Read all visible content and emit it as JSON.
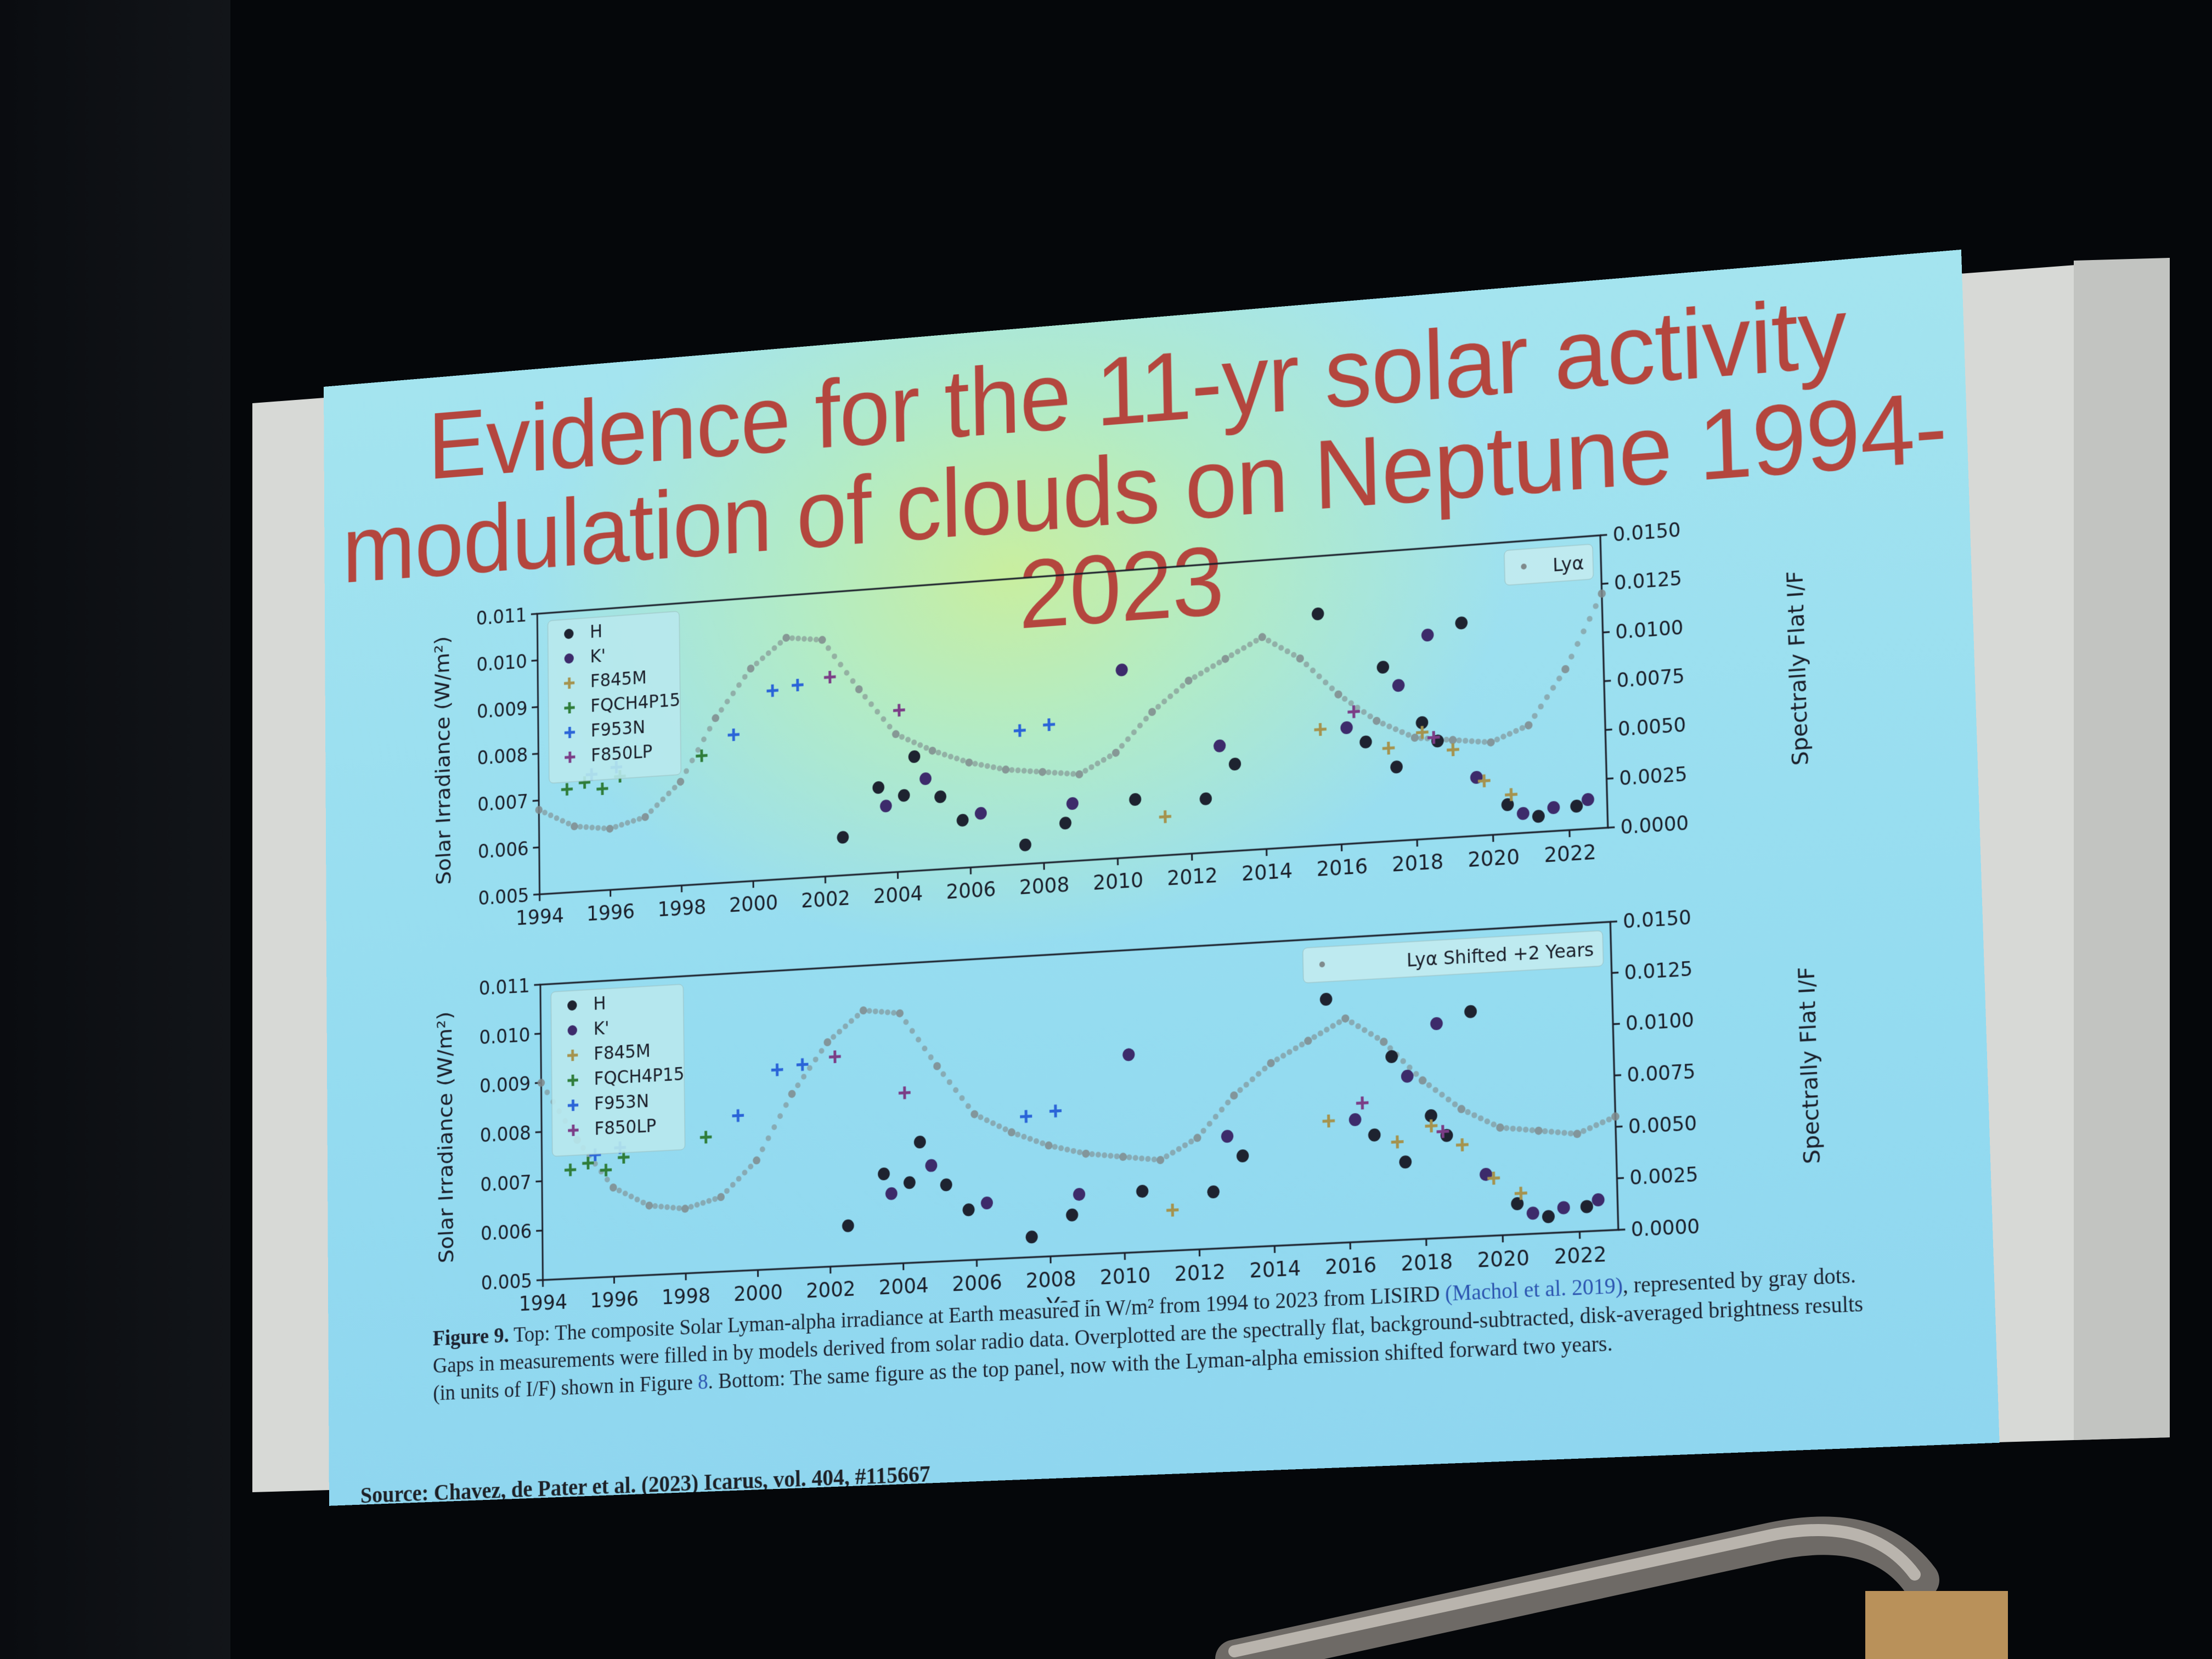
{
  "slide": {
    "title_line1": "Evidence for the 11-yr solar activity",
    "title_line2": "modulation of clouds on Neptune 1994-2023",
    "caption_label": "Figure 9.",
    "caption_part1": "Top: The composite Solar Lyman-alpha irradiance at Earth measured in W/m² from 1994 to 2023 from LISIRD",
    "caption_link": "(Machol et al. 2019)",
    "caption_part2": ", represented by gray dots. Gaps in measurements were filled in by models derived from solar radio data. Overplotted are the spectrally flat, background-subtracted, disk-averaged brightness results (in units of I/F) shown in Figure",
    "caption_fig_ref": "8",
    "caption_part3": ". Bottom: The same figure as the top panel, now with the Lyman-alpha emission shifted forward two years.",
    "source": "Source: Chavez, de Pater et al. (2023) Icarus, vol. 404, #115667"
  },
  "colors": {
    "title": "#b4463e",
    "H": "#1e2330",
    "Kprime": "#3d2b6b",
    "F845M": "#a5934e",
    "FQCH4P15": "#2f7d3a",
    "F953N": "#2a64d8",
    "F850LP": "#7b3d86",
    "lya": "#7f8a8c"
  },
  "chart_data": [
    {
      "type": "scatter",
      "panel": "top",
      "xlabel": "",
      "ylabel_left": "Solar Irradiance (W/m²)",
      "ylabel_right": "Spectrally Flat I/F",
      "xlim": [
        1994,
        2023
      ],
      "ylim_left": [
        0.005,
        0.011
      ],
      "ylim_right": [
        0.0,
        0.015
      ],
      "x_ticks": [
        "1994",
        "1996",
        "1998",
        "2000",
        "2002",
        "2004",
        "2006",
        "2008",
        "2010",
        "2012",
        "2014",
        "2016",
        "2018",
        "2020",
        "2022"
      ],
      "y_ticks_left": [
        "0.005",
        "0.006",
        "0.007",
        "0.008",
        "0.009",
        "0.010",
        "0.011"
      ],
      "y_ticks_right": [
        "0.0000",
        "0.0025",
        "0.0050",
        "0.0075",
        "0.0100",
        "0.0125",
        "0.0150"
      ],
      "legend_left": [
        "H",
        "K'",
        "F845M",
        "FQCH4P15",
        "F953N",
        "F850LP"
      ],
      "legend_left_placement": "top-left",
      "legend_right": "Lyα",
      "legend_right_placement": "top-right",
      "lya_curve": {
        "x": [
          1994,
          1995,
          1996,
          1997,
          1998,
          1999,
          2000,
          2001,
          2002,
          2003,
          2004,
          2005,
          2006,
          2007,
          2008,
          2009,
          2010,
          2011,
          2012,
          2013,
          2014,
          2015,
          2016,
          2017,
          2018,
          2019,
          2020,
          2021,
          2022,
          2023
        ],
        "y": [
          0.0068,
          0.0064,
          0.0063,
          0.0065,
          0.0072,
          0.0085,
          0.0095,
          0.0101,
          0.01,
          0.0089,
          0.0079,
          0.0075,
          0.0072,
          0.007,
          0.0069,
          0.0068,
          0.0072,
          0.008,
          0.0086,
          0.009,
          0.0094,
          0.0089,
          0.0081,
          0.0075,
          0.0071,
          0.007,
          0.0069,
          0.0072,
          0.0083,
          0.0098
        ]
      },
      "series": [
        {
          "name": "H",
          "marker": "dot",
          "x": [
            2002.5,
            2003.5,
            2004.2,
            2004.5,
            2005.2,
            2005.8,
            2007.5,
            2008.6,
            2010.5,
            2012.4,
            2013.2,
            2015.5,
            2016.7,
            2017.2,
            2017.5,
            2018.2,
            2018.6,
            2019.3,
            2020.4,
            2021.2,
            2022.2
          ],
          "y": [
            0.002,
            0.0045,
            0.004,
            0.006,
            0.0038,
            0.0025,
            0.001,
            0.002,
            0.003,
            0.0028,
            0.0045,
            0.012,
            0.0052,
            0.009,
            0.0038,
            0.006,
            0.005,
            0.011,
            0.0015,
            0.0008,
            0.0012
          ]
        },
        {
          "name": "K'",
          "marker": "dot",
          "x": [
            2003.7,
            2004.8,
            2006.3,
            2008.8,
            2010.2,
            2012.8,
            2016.2,
            2017.6,
            2018.4,
            2019.6,
            2020.8,
            2021.6,
            2022.5
          ],
          "y": [
            0.0035,
            0.0048,
            0.0028,
            0.003,
            0.0098,
            0.0055,
            0.006,
            0.008,
            0.0105,
            0.003,
            0.001,
            0.0012,
            0.0015
          ]
        },
        {
          "name": "F845M",
          "marker": "plus",
          "x": [
            2011.3,
            2015.5,
            2017.3,
            2018.2,
            2019.0,
            2019.8,
            2020.5
          ],
          "y": [
            0.002,
            0.006,
            0.0048,
            0.0055,
            0.0045,
            0.0028,
            0.002
          ]
        },
        {
          "name": "FQCH4P15",
          "marker": "plus",
          "x": [
            1994.8,
            1995.3,
            1995.8,
            1996.3,
            1998.6
          ],
          "y": [
            0.0055,
            0.0058,
            0.0054,
            0.006,
            0.0068
          ]
        },
        {
          "name": "F953N",
          "marker": "plus",
          "x": [
            1995.5,
            1996.2,
            1999.5,
            2000.6,
            2001.3,
            2007.4,
            2008.2
          ],
          "y": [
            0.0062,
            0.0065,
            0.0078,
            0.01,
            0.0102,
            0.007,
            0.0072
          ]
        },
        {
          "name": "F850LP",
          "marker": "plus",
          "x": [
            2002.2,
            2004.1,
            2016.4,
            2018.5
          ],
          "y": [
            0.0105,
            0.0085,
            0.0068,
            0.0052
          ]
        }
      ]
    },
    {
      "type": "scatter",
      "panel": "bottom",
      "xlabel": "Year",
      "ylabel_left": "Solar Irradiance (W/m²)",
      "ylabel_right": "Spectrally Flat I/F",
      "xlim": [
        1994,
        2023
      ],
      "ylim_left": [
        0.005,
        0.011
      ],
      "ylim_right": [
        0.0,
        0.015
      ],
      "x_ticks": [
        "1994",
        "1996",
        "1998",
        "2000",
        "2002",
        "2004",
        "2006",
        "2008",
        "2010",
        "2012",
        "2014",
        "2016",
        "2018",
        "2020",
        "2022"
      ],
      "y_ticks_left": [
        "0.005",
        "0.006",
        "0.007",
        "0.008",
        "0.009",
        "0.010",
        "0.011"
      ],
      "y_ticks_right": [
        "0.0000",
        "0.0025",
        "0.0050",
        "0.0075",
        "0.0100",
        "0.0125",
        "0.0150"
      ],
      "legend_left": [
        "H",
        "K'",
        "F845M",
        "FQCH4P15",
        "F953N",
        "F850LP"
      ],
      "legend_left_placement": "top-left",
      "legend_right": "Lyα Shifted +2 Years",
      "legend_right_placement": "top-right",
      "lya_curve": {
        "x": [
          1994,
          1995,
          1996,
          1997,
          1998,
          1999,
          2000,
          2001,
          2002,
          2003,
          2004,
          2005,
          2006,
          2007,
          2008,
          2009,
          2010,
          2011,
          2012,
          2013,
          2014,
          2015,
          2016,
          2017,
          2018,
          2019,
          2020,
          2021,
          2022,
          2023
        ],
        "y": [
          0.009,
          0.0078,
          0.0068,
          0.0064,
          0.0063,
          0.0065,
          0.0072,
          0.0085,
          0.0095,
          0.0101,
          0.01,
          0.0089,
          0.0079,
          0.0075,
          0.0072,
          0.007,
          0.0069,
          0.0068,
          0.0072,
          0.008,
          0.0086,
          0.009,
          0.0094,
          0.0089,
          0.0081,
          0.0075,
          0.0071,
          0.007,
          0.0069,
          0.0072
        ]
      },
      "series": [
        {
          "name": "H",
          "marker": "dot",
          "x": [
            2002.5,
            2003.5,
            2004.2,
            2004.5,
            2005.2,
            2005.8,
            2007.5,
            2008.6,
            2010.5,
            2012.4,
            2013.2,
            2015.5,
            2016.7,
            2017.2,
            2017.5,
            2018.2,
            2018.6,
            2019.3,
            2020.4,
            2021.2,
            2022.2
          ],
          "y": [
            0.002,
            0.0045,
            0.004,
            0.006,
            0.0038,
            0.0025,
            0.001,
            0.002,
            0.003,
            0.0028,
            0.0045,
            0.012,
            0.0052,
            0.009,
            0.0038,
            0.006,
            0.005,
            0.011,
            0.0015,
            0.0008,
            0.0012
          ]
        },
        {
          "name": "K'",
          "marker": "dot",
          "x": [
            2003.7,
            2004.8,
            2006.3,
            2008.8,
            2010.2,
            2012.8,
            2016.2,
            2017.6,
            2018.4,
            2019.6,
            2020.8,
            2021.6,
            2022.5
          ],
          "y": [
            0.0035,
            0.0048,
            0.0028,
            0.003,
            0.0098,
            0.0055,
            0.006,
            0.008,
            0.0105,
            0.003,
            0.001,
            0.0012,
            0.0015
          ]
        },
        {
          "name": "F845M",
          "marker": "plus",
          "x": [
            2011.3,
            2015.5,
            2017.3,
            2018.2,
            2019.0,
            2019.8,
            2020.5
          ],
          "y": [
            0.002,
            0.006,
            0.0048,
            0.0055,
            0.0045,
            0.0028,
            0.002
          ]
        },
        {
          "name": "FQCH4P15",
          "marker": "plus",
          "x": [
            1994.8,
            1995.3,
            1995.8,
            1996.3,
            1998.6
          ],
          "y": [
            0.0055,
            0.0058,
            0.0054,
            0.006,
            0.0068
          ]
        },
        {
          "name": "F953N",
          "marker": "plus",
          "x": [
            1995.5,
            1996.2,
            1999.5,
            2000.6,
            2001.3,
            2007.4,
            2008.2
          ],
          "y": [
            0.0062,
            0.0065,
            0.0078,
            0.01,
            0.0102,
            0.007,
            0.0072
          ]
        },
        {
          "name": "F850LP",
          "marker": "plus",
          "x": [
            2002.2,
            2004.1,
            2016.4,
            2018.5
          ],
          "y": [
            0.0105,
            0.0085,
            0.0068,
            0.0052
          ]
        }
      ]
    }
  ]
}
